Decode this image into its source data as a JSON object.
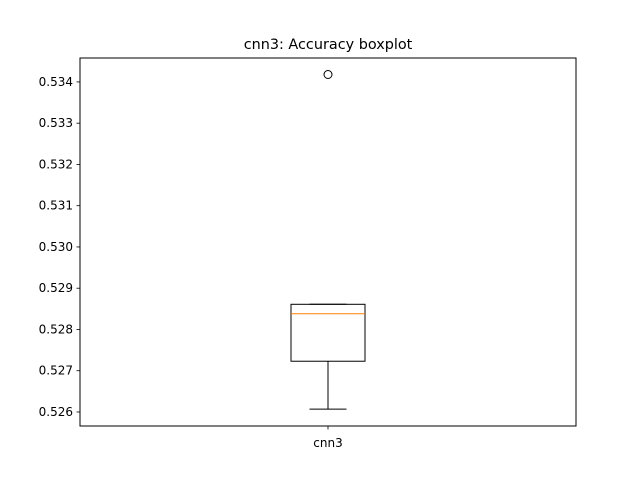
{
  "chart_data": {
    "type": "boxplot",
    "title": "cnn3: Accuracy boxplot",
    "xlabel": "",
    "ylabel": "",
    "categories": [
      "cnn3"
    ],
    "boxes": [
      {
        "label": "cnn3",
        "whisker_low": 0.52607,
        "q1": 0.52723,
        "median": 0.52838,
        "q3": 0.52861,
        "whisker_high": 0.52861,
        "outliers": [
          0.53418
        ]
      }
    ],
    "ylim": [
      0.52566,
      0.53458
    ],
    "yticks": [
      0.526,
      0.527,
      0.528,
      0.529,
      0.53,
      0.531,
      0.532,
      0.533,
      0.534
    ],
    "ytick_labels": [
      "0.526",
      "0.527",
      "0.528",
      "0.529",
      "0.530",
      "0.531",
      "0.532",
      "0.533",
      "0.534"
    ],
    "grid": false,
    "colors": {
      "box": "#000000",
      "median": "#ff7f0e",
      "outlier_edge": "#000000",
      "axes": "#000000",
      "background": "#ffffff"
    }
  }
}
